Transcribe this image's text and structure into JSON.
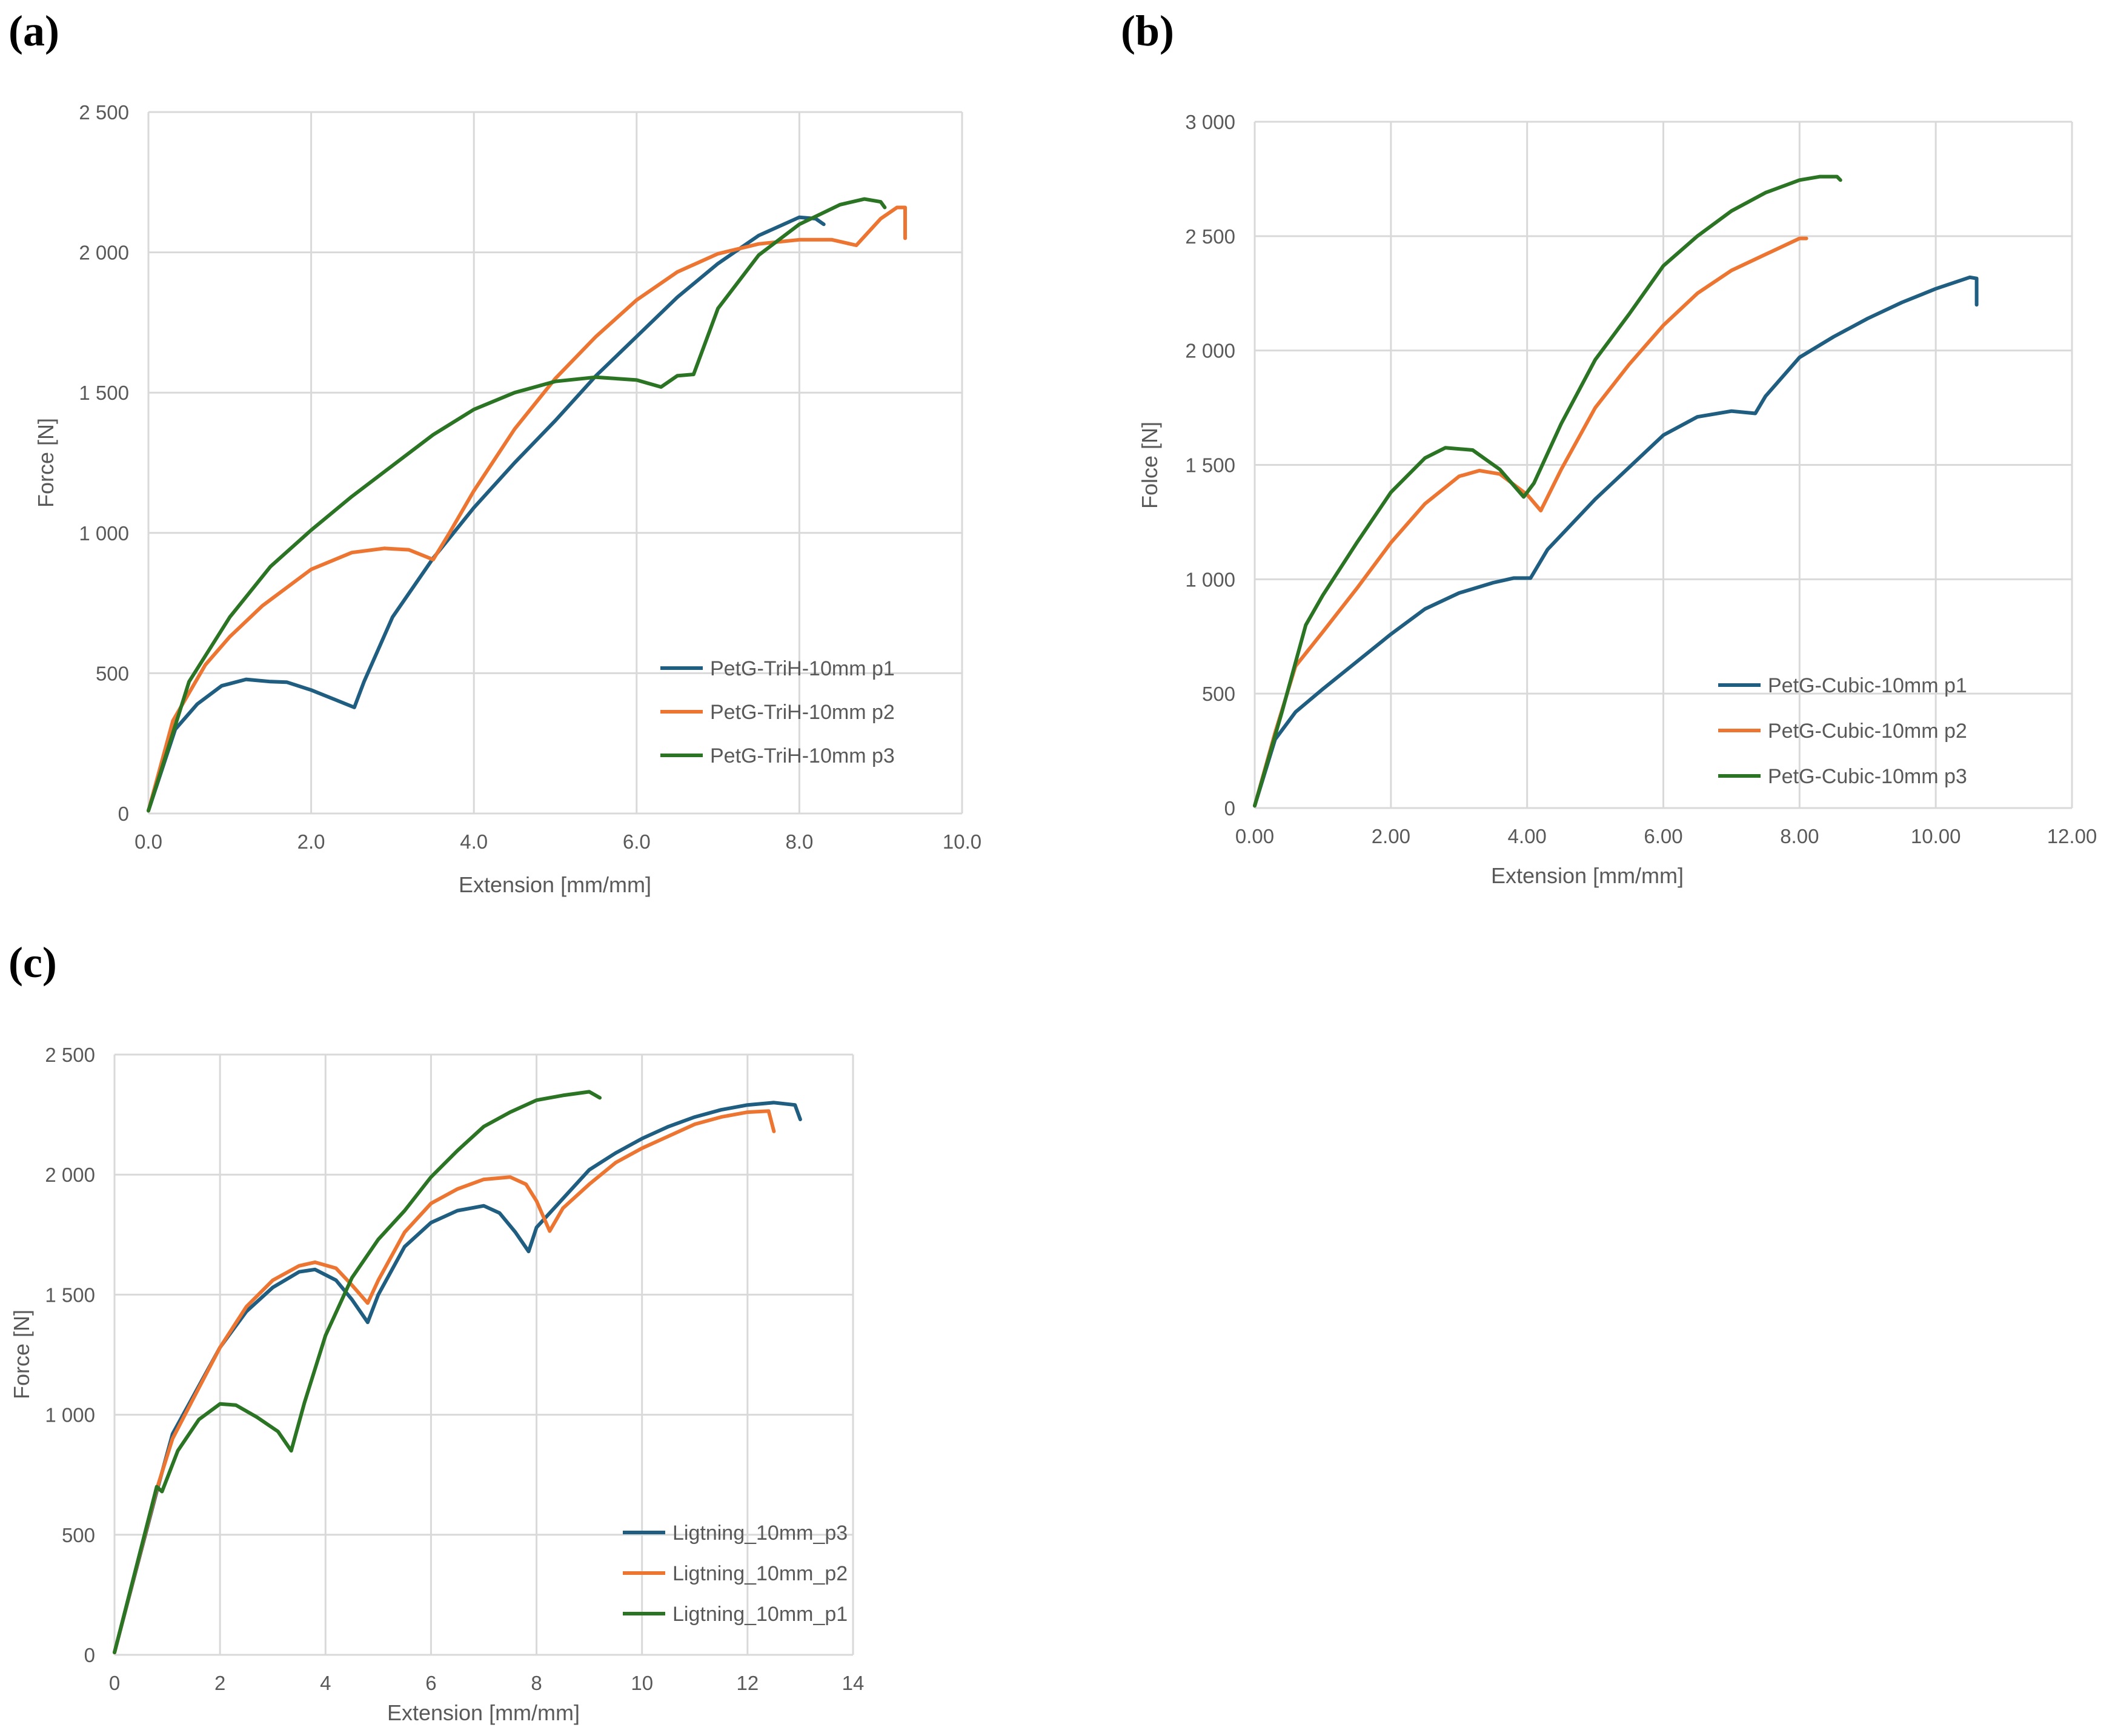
{
  "panel_labels": {
    "a": "(a)",
    "b": "(b)",
    "c": "(c)"
  },
  "colors": {
    "blue": "#1f5e80",
    "orange": "#ed7532",
    "green": "#2a7424",
    "grid": "#d9d9d9",
    "text": "#595959"
  },
  "chart_data": [
    {
      "type": "line",
      "panel": "a",
      "title": "",
      "xlabel": "Extension [mm/mm]",
      "ylabel": "Force [N]",
      "xlim": [
        0,
        10
      ],
      "ylim": [
        0,
        2500
      ],
      "xticks": [
        0,
        2,
        4,
        6,
        8,
        10
      ],
      "xtick_labels": [
        "0.0",
        "2.0",
        "4.0",
        "6.0",
        "8.0",
        "10.0"
      ],
      "yticks": [
        0,
        500,
        1000,
        1500,
        2000,
        2500
      ],
      "ytick_labels": [
        "0",
        "500",
        "1 000",
        "1 500",
        "2 000",
        "2 500"
      ],
      "legend_position": "bottom-right",
      "series": [
        {
          "name": "PetG-TriH-10mm p1",
          "color": "#1f5e80",
          "points": [
            [
              0,
              10
            ],
            [
              0.33,
              300
            ],
            [
              0.6,
              390
            ],
            [
              0.9,
              455
            ],
            [
              1.2,
              478
            ],
            [
              1.5,
              470
            ],
            [
              1.7,
              468
            ],
            [
              2.0,
              440
            ],
            [
              2.3,
              405
            ],
            [
              2.53,
              378
            ],
            [
              2.65,
              470
            ],
            [
              3.0,
              700
            ],
            [
              3.5,
              910
            ],
            [
              4.0,
              1090
            ],
            [
              4.5,
              1250
            ],
            [
              5.0,
              1400
            ],
            [
              5.5,
              1560
            ],
            [
              6.0,
              1700
            ],
            [
              6.5,
              1840
            ],
            [
              7.0,
              1960
            ],
            [
              7.5,
              2060
            ],
            [
              8.0,
              2125
            ],
            [
              8.2,
              2120
            ],
            [
              8.3,
              2100
            ]
          ]
        },
        {
          "name": "PetG-TriH-10mm p2",
          "color": "#ed7532",
          "points": [
            [
              0,
              10
            ],
            [
              0.3,
              330
            ],
            [
              0.7,
              530
            ],
            [
              1.0,
              630
            ],
            [
              1.4,
              740
            ],
            [
              2.0,
              870
            ],
            [
              2.5,
              930
            ],
            [
              2.9,
              945
            ],
            [
              3.2,
              940
            ],
            [
              3.5,
              905
            ],
            [
              3.7,
              1000
            ],
            [
              4.0,
              1150
            ],
            [
              4.5,
              1370
            ],
            [
              5.0,
              1550
            ],
            [
              5.5,
              1700
            ],
            [
              6.0,
              1830
            ],
            [
              6.5,
              1930
            ],
            [
              7.0,
              1995
            ],
            [
              7.5,
              2030
            ],
            [
              8.0,
              2045
            ],
            [
              8.4,
              2045
            ],
            [
              8.7,
              2025
            ],
            [
              9.0,
              2120
            ],
            [
              9.2,
              2160
            ],
            [
              9.3,
              2160
            ],
            [
              9.3,
              2050
            ]
          ]
        },
        {
          "name": "PetG-TriH-10mm p3",
          "color": "#2a7424",
          "points": [
            [
              0,
              10
            ],
            [
              0.5,
              470
            ],
            [
              1.0,
              700
            ],
            [
              1.5,
              880
            ],
            [
              2.0,
              1010
            ],
            [
              2.5,
              1130
            ],
            [
              3.0,
              1240
            ],
            [
              3.5,
              1350
            ],
            [
              4.0,
              1440
            ],
            [
              4.5,
              1500
            ],
            [
              5.0,
              1540
            ],
            [
              5.5,
              1555
            ],
            [
              6.0,
              1545
            ],
            [
              6.3,
              1520
            ],
            [
              6.5,
              1560
            ],
            [
              6.7,
              1565
            ],
            [
              7.0,
              1800
            ],
            [
              7.5,
              1990
            ],
            [
              8.0,
              2100
            ],
            [
              8.5,
              2170
            ],
            [
              8.8,
              2190
            ],
            [
              9.0,
              2180
            ],
            [
              9.05,
              2160
            ]
          ]
        }
      ]
    },
    {
      "type": "line",
      "panel": "b",
      "title": "",
      "xlabel": "Extension [mm/mm]",
      "ylabel": "Folce [N]",
      "xlim": [
        0,
        12
      ],
      "ylim": [
        0,
        3000
      ],
      "xticks": [
        0,
        2,
        4,
        6,
        8,
        10,
        12
      ],
      "xtick_labels": [
        "0.00",
        "2.00",
        "4.00",
        "6.00",
        "8.00",
        "10.00",
        "12.00"
      ],
      "yticks": [
        0,
        500,
        1000,
        1500,
        2000,
        2500,
        3000
      ],
      "ytick_labels": [
        "0",
        "500",
        "1 000",
        "1 500",
        "2 000",
        "2 500",
        "3 000"
      ],
      "legend_position": "bottom-right",
      "series": [
        {
          "name": "PetG-Cubic-10mm p1",
          "color": "#1f5e80",
          "points": [
            [
              0,
              10
            ],
            [
              0.3,
              300
            ],
            [
              0.6,
              420
            ],
            [
              1.0,
              520
            ],
            [
              1.5,
              640
            ],
            [
              2.0,
              760
            ],
            [
              2.5,
              870
            ],
            [
              3.0,
              940
            ],
            [
              3.5,
              985
            ],
            [
              3.8,
              1005
            ],
            [
              4.05,
              1005
            ],
            [
              4.3,
              1130
            ],
            [
              5.0,
              1350
            ],
            [
              5.5,
              1490
            ],
            [
              6.0,
              1630
            ],
            [
              6.5,
              1710
            ],
            [
              7.0,
              1735
            ],
            [
              7.35,
              1725
            ],
            [
              7.5,
              1800
            ],
            [
              8.0,
              1970
            ],
            [
              8.5,
              2060
            ],
            [
              9.0,
              2140
            ],
            [
              9.5,
              2210
            ],
            [
              10.0,
              2270
            ],
            [
              10.5,
              2320
            ],
            [
              10.6,
              2315
            ],
            [
              10.6,
              2200
            ]
          ]
        },
        {
          "name": "PetG-Cubic-10mm p2",
          "color": "#ed7532",
          "points": [
            [
              0,
              10
            ],
            [
              0.3,
              330
            ],
            [
              0.6,
              620
            ],
            [
              1.0,
              770
            ],
            [
              1.5,
              960
            ],
            [
              2.0,
              1160
            ],
            [
              2.5,
              1330
            ],
            [
              3.0,
              1450
            ],
            [
              3.3,
              1475
            ],
            [
              3.6,
              1460
            ],
            [
              4.0,
              1370
            ],
            [
              4.2,
              1300
            ],
            [
              4.5,
              1480
            ],
            [
              5.0,
              1750
            ],
            [
              5.5,
              1940
            ],
            [
              6.0,
              2110
            ],
            [
              6.5,
              2250
            ],
            [
              7.0,
              2350
            ],
            [
              7.5,
              2420
            ],
            [
              8.0,
              2490
            ],
            [
              8.1,
              2490
            ]
          ]
        },
        {
          "name": "PetG-Cubic-10mm p3",
          "color": "#2a7424",
          "points": [
            [
              0,
              10
            ],
            [
              0.4,
              420
            ],
            [
              0.75,
              800
            ],
            [
              1.0,
              930
            ],
            [
              1.5,
              1160
            ],
            [
              2.0,
              1380
            ],
            [
              2.5,
              1530
            ],
            [
              2.8,
              1575
            ],
            [
              3.2,
              1565
            ],
            [
              3.6,
              1480
            ],
            [
              3.95,
              1360
            ],
            [
              4.1,
              1420
            ],
            [
              4.5,
              1680
            ],
            [
              5.0,
              1960
            ],
            [
              5.5,
              2160
            ],
            [
              6.0,
              2370
            ],
            [
              6.5,
              2500
            ],
            [
              7.0,
              2610
            ],
            [
              7.5,
              2690
            ],
            [
              8.0,
              2745
            ],
            [
              8.3,
              2760
            ],
            [
              8.55,
              2760
            ],
            [
              8.6,
              2745
            ]
          ]
        }
      ]
    },
    {
      "type": "line",
      "panel": "c",
      "title": "",
      "xlabel": "Extension [mm/mm]",
      "ylabel": "Force [N]",
      "xlim": [
        0,
        14
      ],
      "ylim": [
        0,
        2500
      ],
      "xticks": [
        0,
        2,
        4,
        6,
        8,
        10,
        12,
        14
      ],
      "xtick_labels": [
        "0",
        "2",
        "4",
        "6",
        "8",
        "10",
        "12",
        "14"
      ],
      "yticks": [
        0,
        500,
        1000,
        1500,
        2000,
        2500
      ],
      "ytick_labels": [
        "0",
        "500",
        "1 000",
        "1 500",
        "2 000",
        "2 500"
      ],
      "legend_position": "bottom-right",
      "series": [
        {
          "name": "Ligtning_10mm_p3",
          "color": "#1f5e80",
          "points": [
            [
              0,
              10
            ],
            [
              0.8,
              680
            ],
            [
              1.1,
              920
            ],
            [
              1.5,
              1080
            ],
            [
              2.0,
              1280
            ],
            [
              2.5,
              1430
            ],
            [
              3.0,
              1530
            ],
            [
              3.5,
              1595
            ],
            [
              3.8,
              1605
            ],
            [
              4.2,
              1560
            ],
            [
              4.5,
              1480
            ],
            [
              4.8,
              1385
            ],
            [
              5.0,
              1500
            ],
            [
              5.5,
              1700
            ],
            [
              6.0,
              1800
            ],
            [
              6.5,
              1850
            ],
            [
              7.0,
              1870
            ],
            [
              7.3,
              1840
            ],
            [
              7.6,
              1760
            ],
            [
              7.85,
              1680
            ],
            [
              8.0,
              1780
            ],
            [
              8.5,
              1900
            ],
            [
              9.0,
              2020
            ],
            [
              9.5,
              2090
            ],
            [
              10.0,
              2150
            ],
            [
              10.5,
              2200
            ],
            [
              11.0,
              2240
            ],
            [
              11.5,
              2270
            ],
            [
              12.0,
              2290
            ],
            [
              12.5,
              2300
            ],
            [
              12.9,
              2290
            ],
            [
              13.0,
              2230
            ]
          ]
        },
        {
          "name": "Ligtning_10mm_p2",
          "color": "#ed7532",
          "points": [
            [
              0,
              10
            ],
            [
              0.8,
              690
            ],
            [
              1.1,
              900
            ],
            [
              1.5,
              1070
            ],
            [
              2.0,
              1280
            ],
            [
              2.5,
              1450
            ],
            [
              3.0,
              1560
            ],
            [
              3.5,
              1620
            ],
            [
              3.8,
              1635
            ],
            [
              4.2,
              1610
            ],
            [
              4.5,
              1540
            ],
            [
              4.8,
              1465
            ],
            [
              5.0,
              1560
            ],
            [
              5.5,
              1760
            ],
            [
              6.0,
              1880
            ],
            [
              6.5,
              1940
            ],
            [
              7.0,
              1980
            ],
            [
              7.5,
              1990
            ],
            [
              7.8,
              1960
            ],
            [
              8.0,
              1890
            ],
            [
              8.25,
              1765
            ],
            [
              8.5,
              1860
            ],
            [
              9.0,
              1960
            ],
            [
              9.5,
              2050
            ],
            [
              10.0,
              2110
            ],
            [
              10.5,
              2160
            ],
            [
              11.0,
              2210
            ],
            [
              11.5,
              2240
            ],
            [
              12.0,
              2260
            ],
            [
              12.4,
              2265
            ],
            [
              12.5,
              2180
            ]
          ]
        },
        {
          "name": "Ligtning_10mm_p1",
          "color": "#2a7424",
          "points": [
            [
              0,
              10
            ],
            [
              0.8,
              700
            ],
            [
              0.9,
              680
            ],
            [
              1.2,
              850
            ],
            [
              1.6,
              980
            ],
            [
              2.0,
              1045
            ],
            [
              2.3,
              1040
            ],
            [
              2.7,
              990
            ],
            [
              3.1,
              930
            ],
            [
              3.35,
              850
            ],
            [
              3.6,
              1050
            ],
            [
              4.0,
              1330
            ],
            [
              4.5,
              1570
            ],
            [
              5.0,
              1730
            ],
            [
              5.5,
              1850
            ],
            [
              6.0,
              1990
            ],
            [
              6.5,
              2100
            ],
            [
              7.0,
              2200
            ],
            [
              7.5,
              2260
            ],
            [
              8.0,
              2310
            ],
            [
              8.5,
              2330
            ],
            [
              9.0,
              2345
            ],
            [
              9.2,
              2320
            ]
          ]
        }
      ]
    }
  ]
}
